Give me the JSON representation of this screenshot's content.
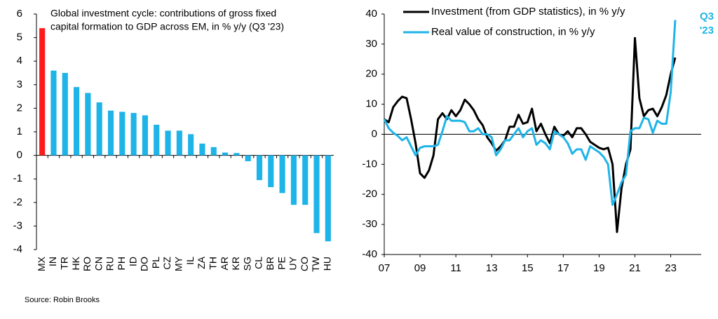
{
  "chart_data": [
    {
      "type": "bar",
      "title": [
        "Global investment cycle: contributions of gross fixed",
        "capital formation to GDP across EM, in % y/y (Q3 '23)"
      ],
      "categories": [
        "MX",
        "IN",
        "TR",
        "HK",
        "RO",
        "CN",
        "RU",
        "PH",
        "ID",
        "DO",
        "PL",
        "CZ",
        "MY",
        "IL",
        "ZA",
        "TH",
        "AR",
        "KR",
        "SG",
        "CL",
        "BR",
        "PE",
        "UY",
        "CO",
        "TW",
        "HU"
      ],
      "values": [
        5.4,
        3.6,
        3.5,
        2.9,
        2.65,
        2.25,
        1.9,
        1.85,
        1.8,
        1.7,
        1.3,
        1.05,
        1.05,
        0.9,
        0.5,
        0.35,
        0.12,
        0.1,
        -0.25,
        -1.05,
        -1.35,
        -1.6,
        -2.1,
        -2.1,
        -3.3,
        -3.65
      ],
      "colors": [
        "#ff1a1a",
        "#1fb4e8",
        "#1fb4e8",
        "#1fb4e8",
        "#1fb4e8",
        "#1fb4e8",
        "#1fb4e8",
        "#1fb4e8",
        "#1fb4e8",
        "#1fb4e8",
        "#1fb4e8",
        "#1fb4e8",
        "#1fb4e8",
        "#1fb4e8",
        "#1fb4e8",
        "#1fb4e8",
        "#1fb4e8",
        "#1fb4e8",
        "#1fb4e8",
        "#1fb4e8",
        "#1fb4e8",
        "#1fb4e8",
        "#1fb4e8",
        "#1fb4e8",
        "#1fb4e8",
        "#1fb4e8"
      ],
      "ylim": [
        -4,
        6
      ],
      "yticks": [
        -4,
        -3,
        -2,
        -1,
        0,
        1,
        2,
        3,
        4,
        5,
        6
      ],
      "grid": false
    },
    {
      "type": "line",
      "legend": "top-left",
      "annotation": [
        "Q3",
        "'23"
      ],
      "x": [
        2007,
        2007.25,
        2007.5,
        2007.75,
        2008,
        2008.25,
        2008.5,
        2008.75,
        2009,
        2009.25,
        2009.5,
        2009.75,
        2010,
        2010.25,
        2010.5,
        2010.75,
        2011,
        2011.25,
        2011.5,
        2011.75,
        2012,
        2012.25,
        2012.5,
        2012.75,
        2013,
        2013.25,
        2013.5,
        2013.75,
        2014,
        2014.25,
        2014.5,
        2014.75,
        2015,
        2015.25,
        2015.5,
        2015.75,
        2016,
        2016.25,
        2016.5,
        2016.75,
        2017,
        2017.25,
        2017.5,
        2017.75,
        2018,
        2018.25,
        2018.5,
        2018.75,
        2019,
        2019.25,
        2019.5,
        2019.75,
        2020,
        2020.25,
        2020.5,
        2020.75,
        2021,
        2021.25,
        2021.5,
        2021.75,
        2022,
        2022.25,
        2022.5,
        2022.75,
        2023,
        2023.25
      ],
      "series": [
        {
          "name": "Investment (from GDP statistics), in % y/y",
          "color": "#000000",
          "values": [
            5,
            4,
            9,
            11,
            12.5,
            12,
            5,
            -3,
            -13,
            -14.5,
            -12,
            -7,
            5,
            7,
            5,
            8,
            6,
            8,
            11.5,
            10,
            8,
            5,
            3,
            -1,
            -3,
            -5.5,
            -4,
            -2,
            2.5,
            2.5,
            6.5,
            3.5,
            4,
            8.5,
            1,
            3.5,
            0,
            -3,
            2.5,
            0,
            -0.5,
            1,
            -1,
            2,
            2,
            0,
            -2.5,
            -3.5,
            -4.5,
            -5,
            -4.5,
            -10,
            -32.5,
            -18,
            -10,
            -5,
            32,
            12,
            6,
            8,
            8.5,
            6,
            9,
            13,
            20,
            25.5
          ]
        },
        {
          "name": "Real value of construction, in % y/y",
          "color": "#1fb4e8",
          "values": [
            5,
            2,
            0.5,
            -0.5,
            -2,
            -1,
            -4,
            -7,
            -4.5,
            -4,
            -4,
            -4,
            -3.5,
            1,
            6,
            4.5,
            4.5,
            4.5,
            4,
            1,
            1,
            2,
            0,
            0,
            -1,
            -7,
            -5,
            -2,
            -2,
            0,
            2,
            -1,
            1,
            2,
            -3.5,
            -2,
            -3,
            -5,
            1,
            0,
            -1,
            -3,
            -6.5,
            -5,
            -5,
            -8.5,
            -4,
            -5,
            -6,
            -7.5,
            -10,
            -23.5,
            -20,
            -16,
            -13.5,
            1,
            2,
            2,
            5.5,
            5,
            0.5,
            4.5,
            3.5,
            3.5,
            14,
            38
          ]
        }
      ],
      "xlim": [
        2007,
        2024.7
      ],
      "xticks": [
        {
          "value": 2007,
          "label": "07"
        },
        {
          "value": 2009,
          "label": "09"
        },
        {
          "value": 2011,
          "label": "11"
        },
        {
          "value": 2013,
          "label": "13"
        },
        {
          "value": 2015,
          "label": "15"
        },
        {
          "value": 2017,
          "label": "17"
        },
        {
          "value": 2019,
          "label": "19"
        },
        {
          "value": 2021,
          "label": "21"
        },
        {
          "value": 2023,
          "label": "23"
        }
      ],
      "ylim": [
        -40,
        40
      ],
      "yticks": [
        -40,
        -30,
        -20,
        -10,
        0,
        10,
        20,
        30,
        40
      ]
    }
  ],
  "source": "Source: Robin Brooks"
}
